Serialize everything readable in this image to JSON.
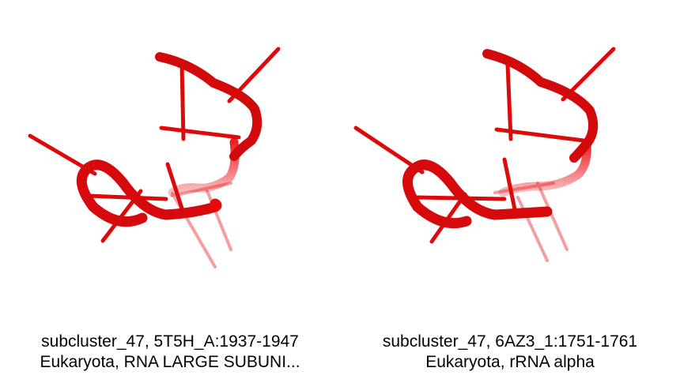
{
  "color": "#e8090b",
  "panels": [
    {
      "line1": "subcluster_47, 5T5H_A:1937-1947",
      "line2": "Eukaryota, RNA LARGE SUBUNI..."
    },
    {
      "line1": "subcluster_47, 6AZ3_1:1751-1761",
      "line2": "Eukaryota, rRNA alpha"
    }
  ]
}
